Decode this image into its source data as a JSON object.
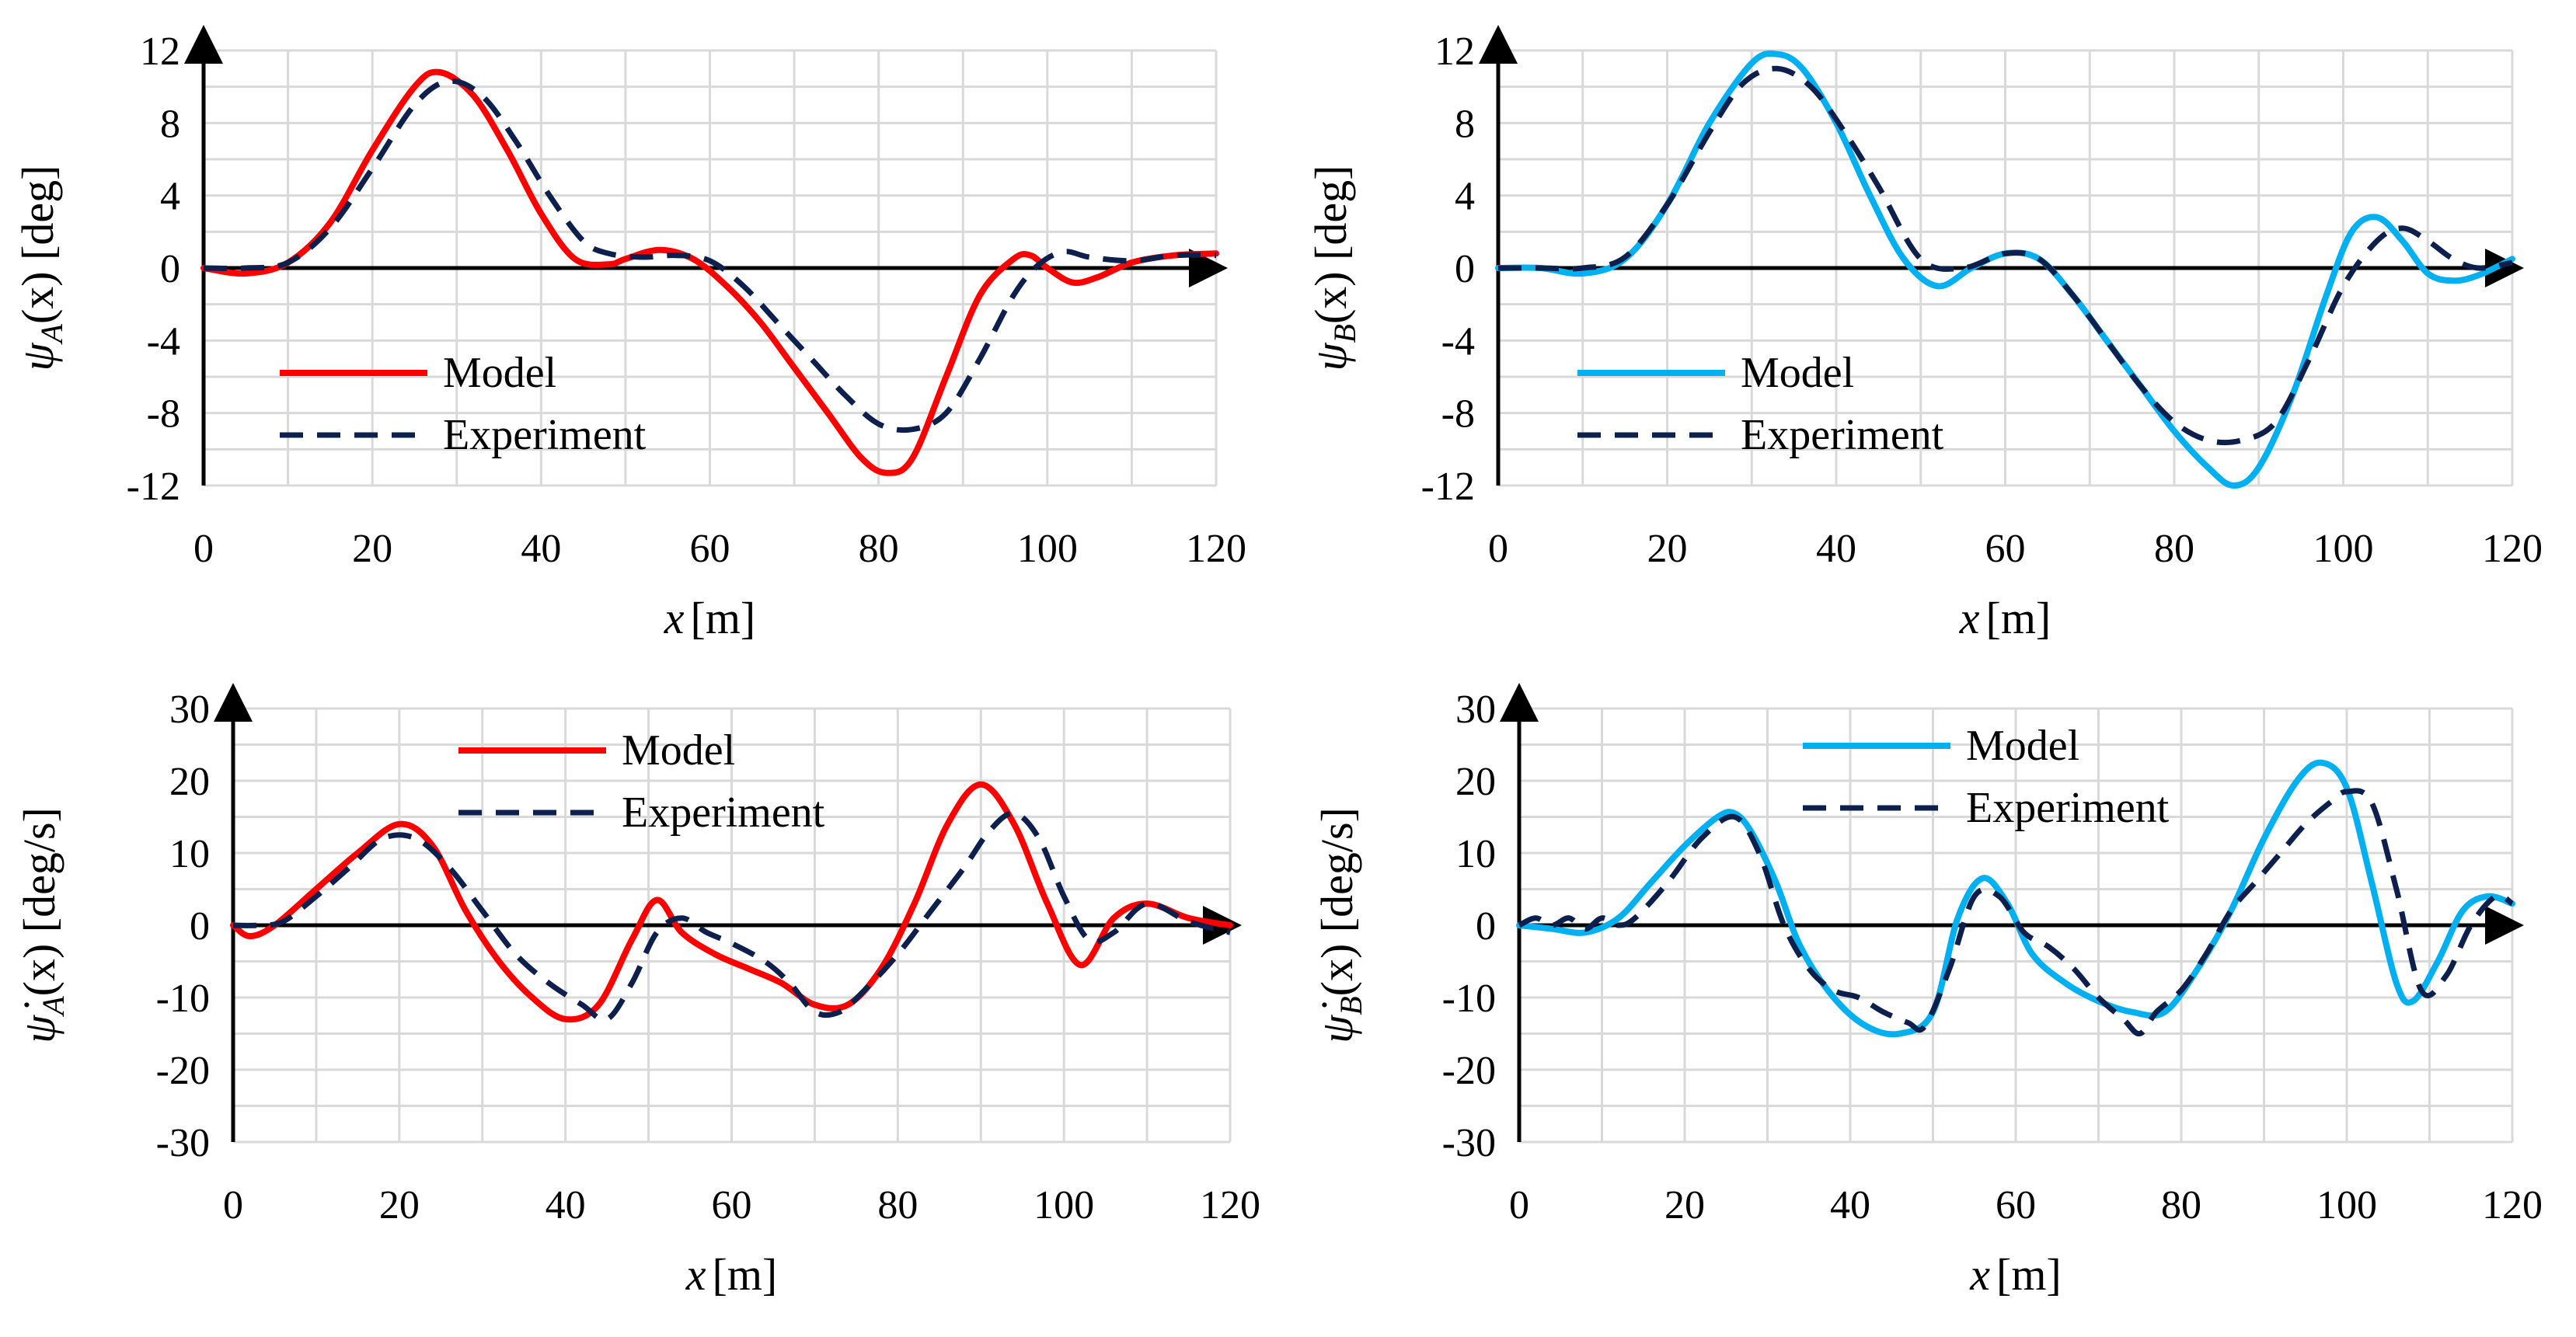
{
  "chart_data": [
    {
      "type": "line",
      "panel": "top-left",
      "ylabel": "ψ_A(x) [deg]",
      "ylabel_parts": {
        "sym": "ψ",
        "sub": "A",
        "rest": "(x) [deg]"
      },
      "xlabel_parts": {
        "sym": "x",
        "rest": "[m]"
      },
      "xlim": [
        0,
        120
      ],
      "ylim": [
        -12,
        12
      ],
      "x_ticks": [
        "0",
        "20",
        "40",
        "60",
        "80",
        "100",
        "120"
      ],
      "y_ticks": [
        "12",
        "8",
        "4",
        "0",
        "-4",
        "-8",
        "-12"
      ],
      "grid": true,
      "legend": {
        "position": "bottom-left",
        "entries": [
          "Model",
          "Experiment"
        ]
      },
      "series": [
        {
          "name": "Model",
          "color": "#ff0000",
          "style": "solid",
          "x": [
            0,
            5,
            10,
            15,
            20,
            25,
            28,
            32,
            36,
            40,
            44,
            48,
            50,
            54,
            58,
            62,
            66,
            70,
            74,
            78,
            81,
            84,
            88,
            92,
            96,
            98,
            100,
            103,
            106,
            110,
            115,
            120
          ],
          "y": [
            0,
            -0.3,
            0.3,
            2.5,
            6.5,
            10,
            10.8,
            9.5,
            6.5,
            3,
            0.5,
            0.2,
            0.5,
            1,
            0.5,
            -1,
            -3,
            -5.5,
            -8,
            -10.5,
            -11.3,
            -10.5,
            -6,
            -1.5,
            0.5,
            0.7,
            0,
            -0.8,
            -0.5,
            0.3,
            0.7,
            0.8
          ]
        },
        {
          "name": "Experiment",
          "color": "#0d1f4c",
          "style": "dashed",
          "x": [
            0,
            5,
            10,
            15,
            20,
            25,
            29,
            33,
            37,
            41,
            45,
            48,
            52,
            56,
            60,
            64,
            68,
            72,
            76,
            80,
            84,
            88,
            92,
            96,
            99,
            102,
            105,
            110,
            115,
            120
          ],
          "y": [
            0,
            0,
            0.3,
            2.2,
            5.5,
            9,
            10.3,
            9.5,
            7,
            4,
            1.5,
            0.8,
            0.6,
            0.7,
            0.4,
            -1,
            -3,
            -5,
            -7,
            -8.6,
            -8.9,
            -8,
            -5,
            -1.5,
            0.2,
            0.9,
            0.6,
            0.4,
            0.7,
            0.7
          ]
        }
      ]
    },
    {
      "type": "line",
      "panel": "top-right",
      "ylabel": "ψ_B(x) [deg]",
      "ylabel_parts": {
        "sym": "ψ",
        "sub": "B",
        "rest": "(x) [deg]"
      },
      "xlabel_parts": {
        "sym": "x",
        "rest": "[m]"
      },
      "xlim": [
        0,
        120
      ],
      "ylim": [
        -12,
        12
      ],
      "x_ticks": [
        "0",
        "20",
        "40",
        "60",
        "80",
        "100",
        "120"
      ],
      "y_ticks": [
        "12",
        "8",
        "4",
        "0",
        "-4",
        "-8",
        "-12"
      ],
      "grid": true,
      "legend": {
        "position": "bottom-left",
        "entries": [
          "Model",
          "Experiment"
        ]
      },
      "series": [
        {
          "name": "Model",
          "color": "#00b0f0",
          "style": "solid",
          "x": [
            0,
            5,
            10,
            15,
            20,
            25,
            30,
            33,
            36,
            40,
            44,
            48,
            52,
            56,
            60,
            64,
            68,
            72,
            76,
            80,
            84,
            87,
            90,
            94,
            98,
            101,
            104,
            107,
            110,
            113,
            116,
            120
          ],
          "y": [
            0,
            0,
            -0.3,
            0.5,
            3.5,
            8,
            11.3,
            11.8,
            11,
            8,
            4,
            0.5,
            -1,
            0,
            0.8,
            0.5,
            -1.5,
            -4,
            -6.5,
            -9,
            -11,
            -12,
            -11,
            -7,
            -1.5,
            2,
            2.8,
            1.5,
            -0.3,
            -0.7,
            -0.4,
            0.5
          ]
        },
        {
          "name": "Experiment",
          "color": "#0d1f4c",
          "style": "dashed",
          "x": [
            0,
            5,
            10,
            15,
            20,
            25,
            29,
            33,
            37,
            41,
            45,
            50,
            55,
            60,
            64,
            68,
            72,
            76,
            80,
            84,
            88,
            92,
            96,
            100,
            104,
            107,
            110,
            113,
            116,
            120
          ],
          "y": [
            0,
            0,
            0,
            0.6,
            3.5,
            7.5,
            10.2,
            11,
            10,
            7.5,
            4.5,
            0.5,
            0,
            0.8,
            0.5,
            -1.5,
            -4,
            -6.5,
            -8.5,
            -9.5,
            -9.5,
            -8.5,
            -5,
            -1,
            1.5,
            2.2,
            1.5,
            0.5,
            0,
            0.3
          ]
        }
      ]
    },
    {
      "type": "line",
      "panel": "bottom-left",
      "ylabel": "ψ̇_A(x) [deg/s]",
      "ylabel_parts": {
        "sym": "ψ̇",
        "sub": "A",
        "rest": "(x) [deg/s]"
      },
      "xlabel_parts": {
        "sym": "x",
        "rest": "[m]"
      },
      "xlim": [
        0,
        120
      ],
      "ylim": [
        -30,
        30
      ],
      "x_ticks": [
        "0",
        "20",
        "40",
        "60",
        "80",
        "100",
        "120"
      ],
      "y_ticks": [
        "30",
        "20",
        "10",
        "0",
        "-10",
        "-20",
        "-30"
      ],
      "grid": true,
      "legend": {
        "position": "top-center",
        "entries": [
          "Model",
          "Experiment"
        ]
      },
      "series": [
        {
          "name": "Model",
          "color": "#ff0000",
          "style": "solid",
          "x": [
            0,
            2,
            5,
            10,
            15,
            20,
            24,
            28,
            32,
            36,
            40,
            44,
            48,
            51,
            54,
            58,
            62,
            66,
            70,
            74,
            78,
            82,
            86,
            90,
            94,
            98,
            102,
            106,
            110,
            115,
            120
          ],
          "y": [
            0,
            -1.5,
            0,
            5,
            10,
            14,
            11,
            2,
            -5,
            -10,
            -13,
            -11,
            -2,
            3.5,
            -1,
            -4,
            -6,
            -8,
            -11,
            -11,
            -6,
            3,
            14,
            19.5,
            14,
            3,
            -5.5,
            1,
            3,
            1,
            0
          ]
        },
        {
          "name": "Experiment",
          "color": "#0d1f4c",
          "style": "dashed",
          "x": [
            0,
            3,
            6,
            10,
            14,
            18,
            22,
            26,
            30,
            34,
            38,
            42,
            45,
            48,
            51,
            54,
            57,
            60,
            64,
            67,
            70,
            73,
            76,
            80,
            84,
            88,
            91,
            94,
            97,
            100,
            103,
            106,
            110,
            115,
            120
          ],
          "y": [
            0,
            0,
            0.5,
            4,
            8,
            12,
            12,
            8,
            2,
            -4,
            -8,
            -11,
            -13,
            -8,
            -1,
            1,
            -1,
            -2.5,
            -5,
            -8,
            -12,
            -12,
            -9,
            -4,
            2,
            8,
            13,
            15.5,
            12,
            4,
            -2,
            -1,
            3,
            0.5,
            -1
          ]
        }
      ]
    },
    {
      "type": "line",
      "panel": "bottom-right",
      "ylabel": "ψ̇_B(x) [deg/s]",
      "ylabel_parts": {
        "sym": "ψ̇",
        "sub": "B",
        "rest": "(x) [deg/s]"
      },
      "xlabel_parts": {
        "sym": "x",
        "rest": "[m]"
      },
      "xlim": [
        0,
        120
      ],
      "ylim": [
        -30,
        30
      ],
      "x_ticks": [
        "0",
        "20",
        "40",
        "60",
        "80",
        "100",
        "120"
      ],
      "y_ticks": [
        "30",
        "20",
        "10",
        "0",
        "-10",
        "-20",
        "-30"
      ],
      "grid": true,
      "legend": {
        "position": "top-center",
        "entries": [
          "Model",
          "Experiment"
        ]
      },
      "series": [
        {
          "name": "Model",
          "color": "#00b0f0",
          "style": "solid",
          "x": [
            0,
            4,
            8,
            12,
            16,
            20,
            24,
            26,
            28,
            31,
            34,
            38,
            42,
            46,
            50,
            53,
            56,
            59,
            62,
            66,
            70,
            74,
            78,
            82,
            86,
            90,
            94,
            97,
            100,
            103,
            106,
            108,
            111,
            114,
            117,
            120
          ],
          "y": [
            0,
            -0.5,
            -1,
            1,
            6,
            11,
            15,
            15.5,
            13,
            6,
            -3,
            -10,
            -14,
            -15,
            -12,
            1,
            6.5,
            3,
            -4,
            -8,
            -10.5,
            -12,
            -12,
            -6,
            2,
            12,
            20,
            22.5,
            19,
            6,
            -8,
            -10.5,
            -5,
            2,
            4,
            3
          ]
        },
        {
          "name": "Experiment",
          "color": "#0d1f4c",
          "style": "dashed",
          "x": [
            0,
            2,
            4,
            6,
            8,
            10,
            12,
            14,
            18,
            22,
            26,
            29,
            32,
            35,
            38,
            41,
            44,
            47,
            49,
            52,
            55,
            58,
            61,
            64,
            67,
            70,
            73,
            75,
            77,
            80,
            83,
            86,
            89,
            92,
            95,
            98,
            100,
            103,
            106,
            109,
            112,
            115,
            118,
            120
          ],
          "y": [
            0,
            1,
            0,
            1,
            -0.5,
            1,
            0,
            1,
            6,
            12,
            15,
            10,
            0,
            -6,
            -9,
            -10,
            -12,
            -13.5,
            -14,
            -6,
            4,
            4,
            -1,
            -3,
            -6,
            -10,
            -13,
            -15,
            -12,
            -9,
            -4,
            2,
            6,
            10,
            14,
            17,
            18.5,
            17,
            5,
            -9,
            -7,
            0,
            4,
            3
          ]
        }
      ]
    }
  ]
}
